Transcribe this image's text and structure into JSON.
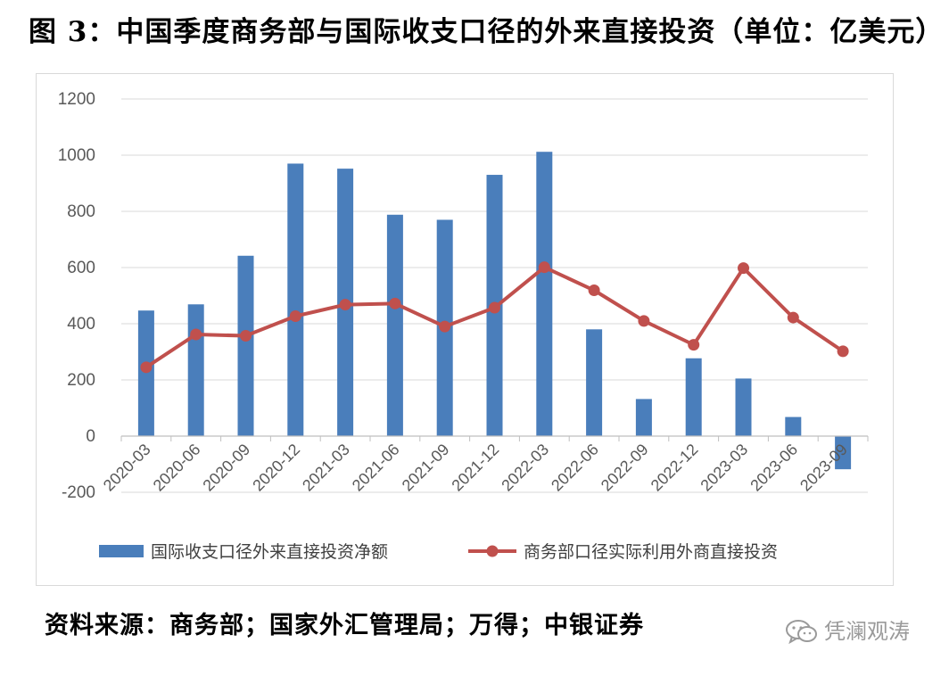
{
  "title": "图 3：中国季度商务部与国际收支口径的外来直接投资（单位：亿美元）",
  "source": "资料来源：商务部；国家外汇管理局；万得；中银证券",
  "watermark": "凭澜观涛",
  "chart_data": {
    "type": "bar",
    "categories": [
      "2020-03",
      "2020-06",
      "2020-09",
      "2020-12",
      "2021-03",
      "2021-06",
      "2021-09",
      "2021-12",
      "2022-03",
      "2022-06",
      "2022-09",
      "2022-12",
      "2023-03",
      "2023-06",
      "2023-09"
    ],
    "ylim": [
      -200,
      1200
    ],
    "yticks": [
      -200,
      0,
      200,
      400,
      600,
      800,
      1000,
      1200
    ],
    "grid": true,
    "legend_position": "bottom",
    "series": [
      {
        "name": "国际收支口径外来直接投资净额",
        "type": "bar",
        "color": "#4a7ebb",
        "values": [
          447,
          469,
          642,
          970,
          952,
          788,
          770,
          930,
          1012,
          380,
          132,
          277,
          205,
          68,
          -118
        ]
      },
      {
        "name": "商务部口径实际利用外商直接投资",
        "type": "line",
        "color": "#c0504d",
        "values": [
          245,
          362,
          357,
          427,
          468,
          472,
          390,
          457,
          601,
          519,
          410,
          325,
          598,
          422,
          302
        ]
      }
    ]
  }
}
